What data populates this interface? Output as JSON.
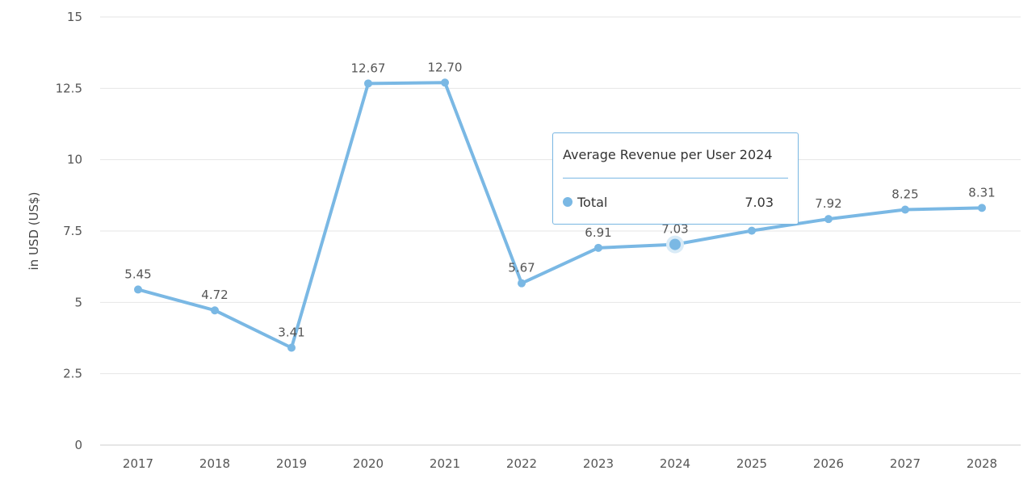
{
  "colors": {
    "series": "#7ab8e4",
    "grid": "#e6e6e6",
    "axis": "#cccccc",
    "hover_halo": "#d9ebf7"
  },
  "chart_data": {
    "type": "line",
    "title": "",
    "xlabel": "",
    "ylabel": "in USD (US$)",
    "ylim": [
      0,
      15
    ],
    "y_ticks": [
      0,
      2.5,
      5,
      7.5,
      10,
      12.5,
      15
    ],
    "y_tick_labels": [
      "0",
      "2.5",
      "5",
      "7.5",
      "10",
      "12.5",
      "15"
    ],
    "grid": true,
    "legend": "none",
    "categories": [
      "2017",
      "2018",
      "2019",
      "2020",
      "2021",
      "2022",
      "2023",
      "2024",
      "2025",
      "2026",
      "2027",
      "2028"
    ],
    "series": [
      {
        "name": "Total",
        "values": [
          5.45,
          4.72,
          3.41,
          12.67,
          12.7,
          5.67,
          6.91,
          7.03,
          7.51,
          7.92,
          8.25,
          8.31
        ],
        "data_labels": [
          "5.45",
          "4.72",
          "3.41",
          "12.67",
          "12.70",
          "5.67",
          "6.91",
          "7.03",
          "",
          "7.92",
          "8.25",
          "8.31"
        ]
      }
    ],
    "highlighted_index": 7,
    "tooltip": {
      "title": "Average Revenue per User 2024",
      "series_name": "Total",
      "value": "7.03"
    }
  }
}
